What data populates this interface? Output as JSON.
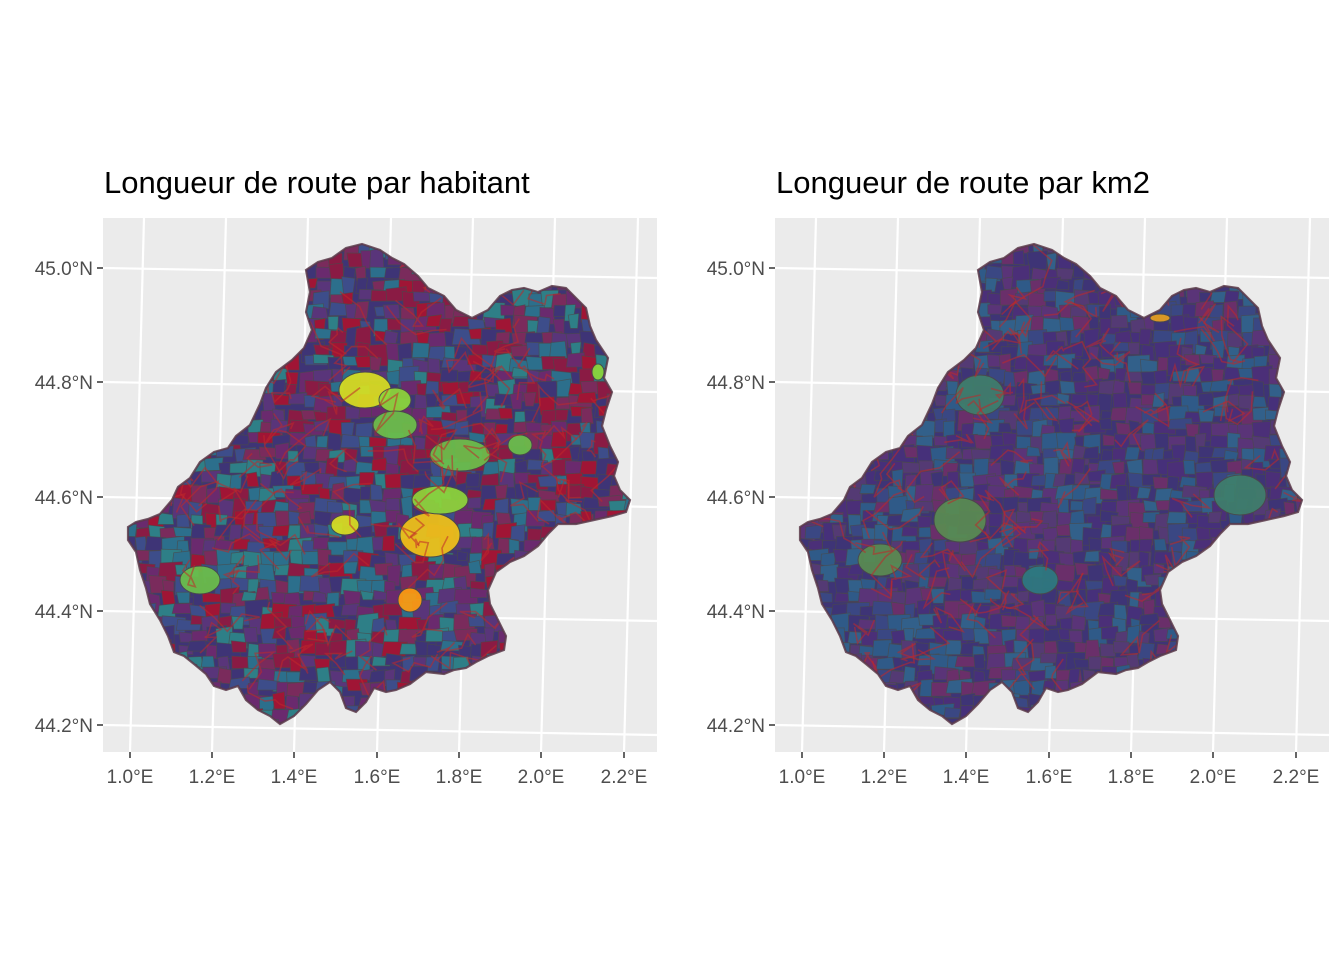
{
  "panels": [
    {
      "title": "Longueur de route par habitant",
      "palette": [
        "#3e3476",
        "#59357a",
        "#6a2a6e",
        "#3d4d8a",
        "#2c6f8c",
        "#2e7f87",
        "#7a2b5c",
        "#8a1b44",
        "#a01535"
      ],
      "hotspots_palette": [
        "#6cc04a",
        "#8ed63a",
        "#d9e021",
        "#f2c318",
        "#ff9c10"
      ]
    },
    {
      "title": "Longueur de route par km2",
      "palette": [
        "#3e3476",
        "#4b2f78",
        "#5a3478",
        "#3a4783",
        "#32608a",
        "#46307a",
        "#6a2f6a",
        "#543a74",
        "#2f5a88"
      ],
      "hotspots_palette": [
        "#3f7f6c",
        "#5a8c52",
        "#2e7a80",
        "#e7a020"
      ]
    }
  ],
  "axes": {
    "x_ticks": [
      "1.0°E",
      "1.2°E",
      "1.4°E",
      "1.6°E",
      "1.8°E",
      "2.0°E",
      "2.2°E"
    ],
    "y_ticks": [
      "45.0°N",
      "44.8°N",
      "44.6°N",
      "44.4°N",
      "44.2°N"
    ]
  },
  "colors": {
    "panel_background": "#ebebeb",
    "grid": "#ffffff",
    "road": "#c0282a",
    "border": "#4a4a4a"
  }
}
